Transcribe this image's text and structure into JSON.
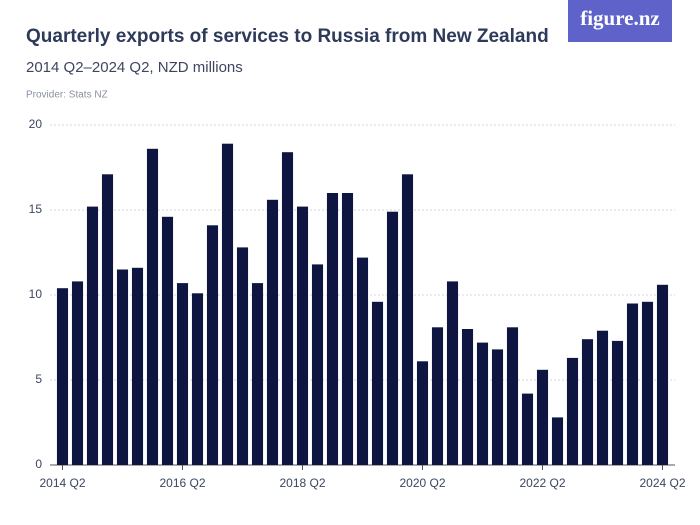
{
  "brand": "figure.nz",
  "chart_data": {
    "type": "bar",
    "title": "Quarterly exports of services to Russia from New Zealand",
    "subtitle": "2014 Q2–2024 Q2, NZD millions",
    "provider": "Provider: Stats NZ",
    "categories": [
      "2014 Q2",
      null,
      null,
      null,
      null,
      null,
      null,
      null,
      "2016 Q2",
      null,
      null,
      null,
      null,
      null,
      null,
      null,
      "2018 Q2",
      null,
      null,
      null,
      null,
      null,
      null,
      null,
      "2020 Q2",
      null,
      null,
      null,
      null,
      null,
      null,
      null,
      "2022 Q2",
      null,
      null,
      null,
      null,
      null,
      null,
      null,
      "2024 Q2"
    ],
    "values": [
      10.4,
      10.8,
      15.2,
      17.1,
      11.5,
      11.6,
      18.6,
      14.6,
      10.7,
      10.1,
      14.1,
      18.9,
      12.8,
      10.7,
      15.6,
      18.4,
      15.2,
      11.8,
      16.0,
      16.0,
      12.2,
      9.6,
      14.9,
      17.1,
      6.1,
      8.1,
      10.8,
      8.0,
      7.2,
      6.8,
      8.1,
      4.2,
      5.6,
      2.8,
      6.3,
      7.4,
      7.9,
      7.3,
      9.5,
      9.6,
      10.6
    ],
    "color": "#0e1540",
    "ylim": [
      0,
      20
    ],
    "yticks": [
      0,
      5,
      10,
      15,
      20
    ],
    "grid": true
  }
}
